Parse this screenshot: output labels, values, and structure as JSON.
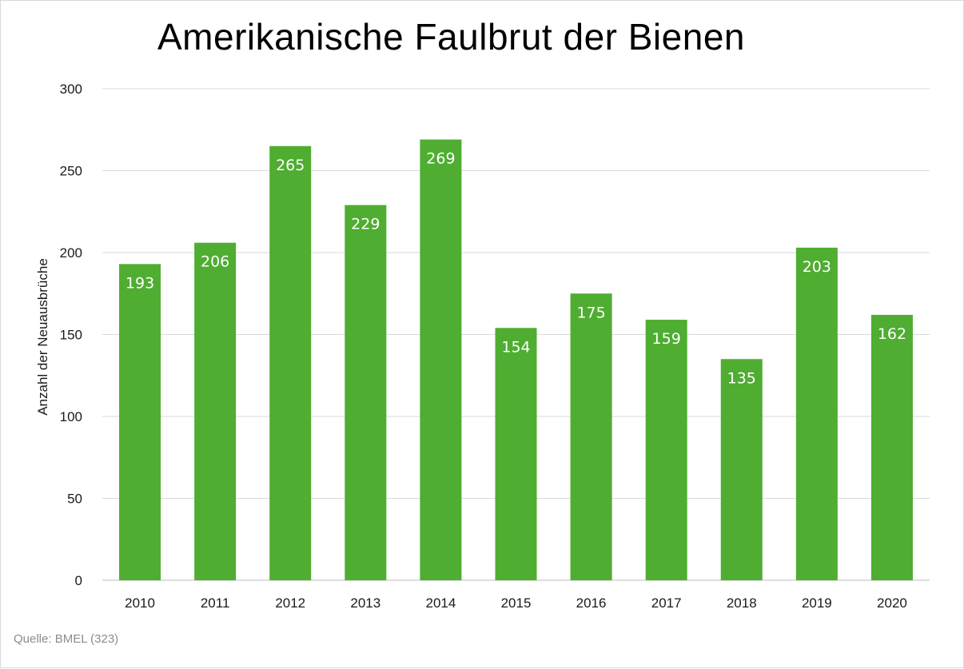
{
  "title": "Amerikanische Faulbrut der Bienen",
  "source": "Quelle: BMEL (323)",
  "colors": {
    "bar": "#4fad31",
    "grid": "#d9d9d9",
    "axis": "#bfbfbf",
    "label": "#ffffff"
  },
  "chart_data": {
    "type": "bar",
    "title": "Amerikanische Faulbrut der Bienen",
    "xlabel": "",
    "ylabel": "Anzahl der Neuausbrüche",
    "categories": [
      "2010",
      "2011",
      "2012",
      "2013",
      "2014",
      "2015",
      "2016",
      "2017",
      "2018",
      "2019",
      "2020"
    ],
    "values": [
      193,
      206,
      265,
      229,
      269,
      154,
      175,
      159,
      135,
      203,
      162
    ],
    "ylim": [
      0,
      300
    ],
    "yticks": [
      0,
      50,
      100,
      150,
      200,
      250,
      300
    ],
    "grid": true,
    "legend": "none",
    "data_labels": "inside-top"
  }
}
